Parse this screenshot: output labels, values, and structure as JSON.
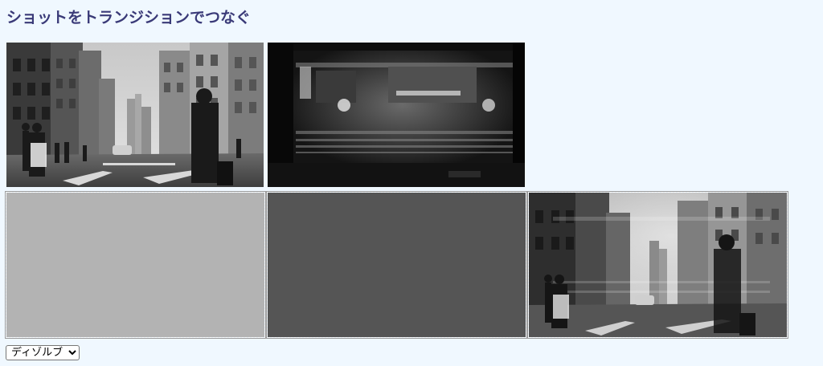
{
  "page": {
    "title": "ショットをトランジションでつなぐ"
  },
  "shots": {
    "source_a": {
      "icon": "street-photo-icon"
    },
    "source_b": {
      "icon": "subway-train-photo-icon"
    },
    "timeline_slot_1": {
      "fill": "#b3b3b3"
    },
    "timeline_slot_2": {
      "fill": "#555555"
    },
    "timeline_slot_3": {
      "icon": "street-photo-dissolve-icon"
    }
  },
  "transition_select": {
    "selected": "ディゾルブ"
  }
}
